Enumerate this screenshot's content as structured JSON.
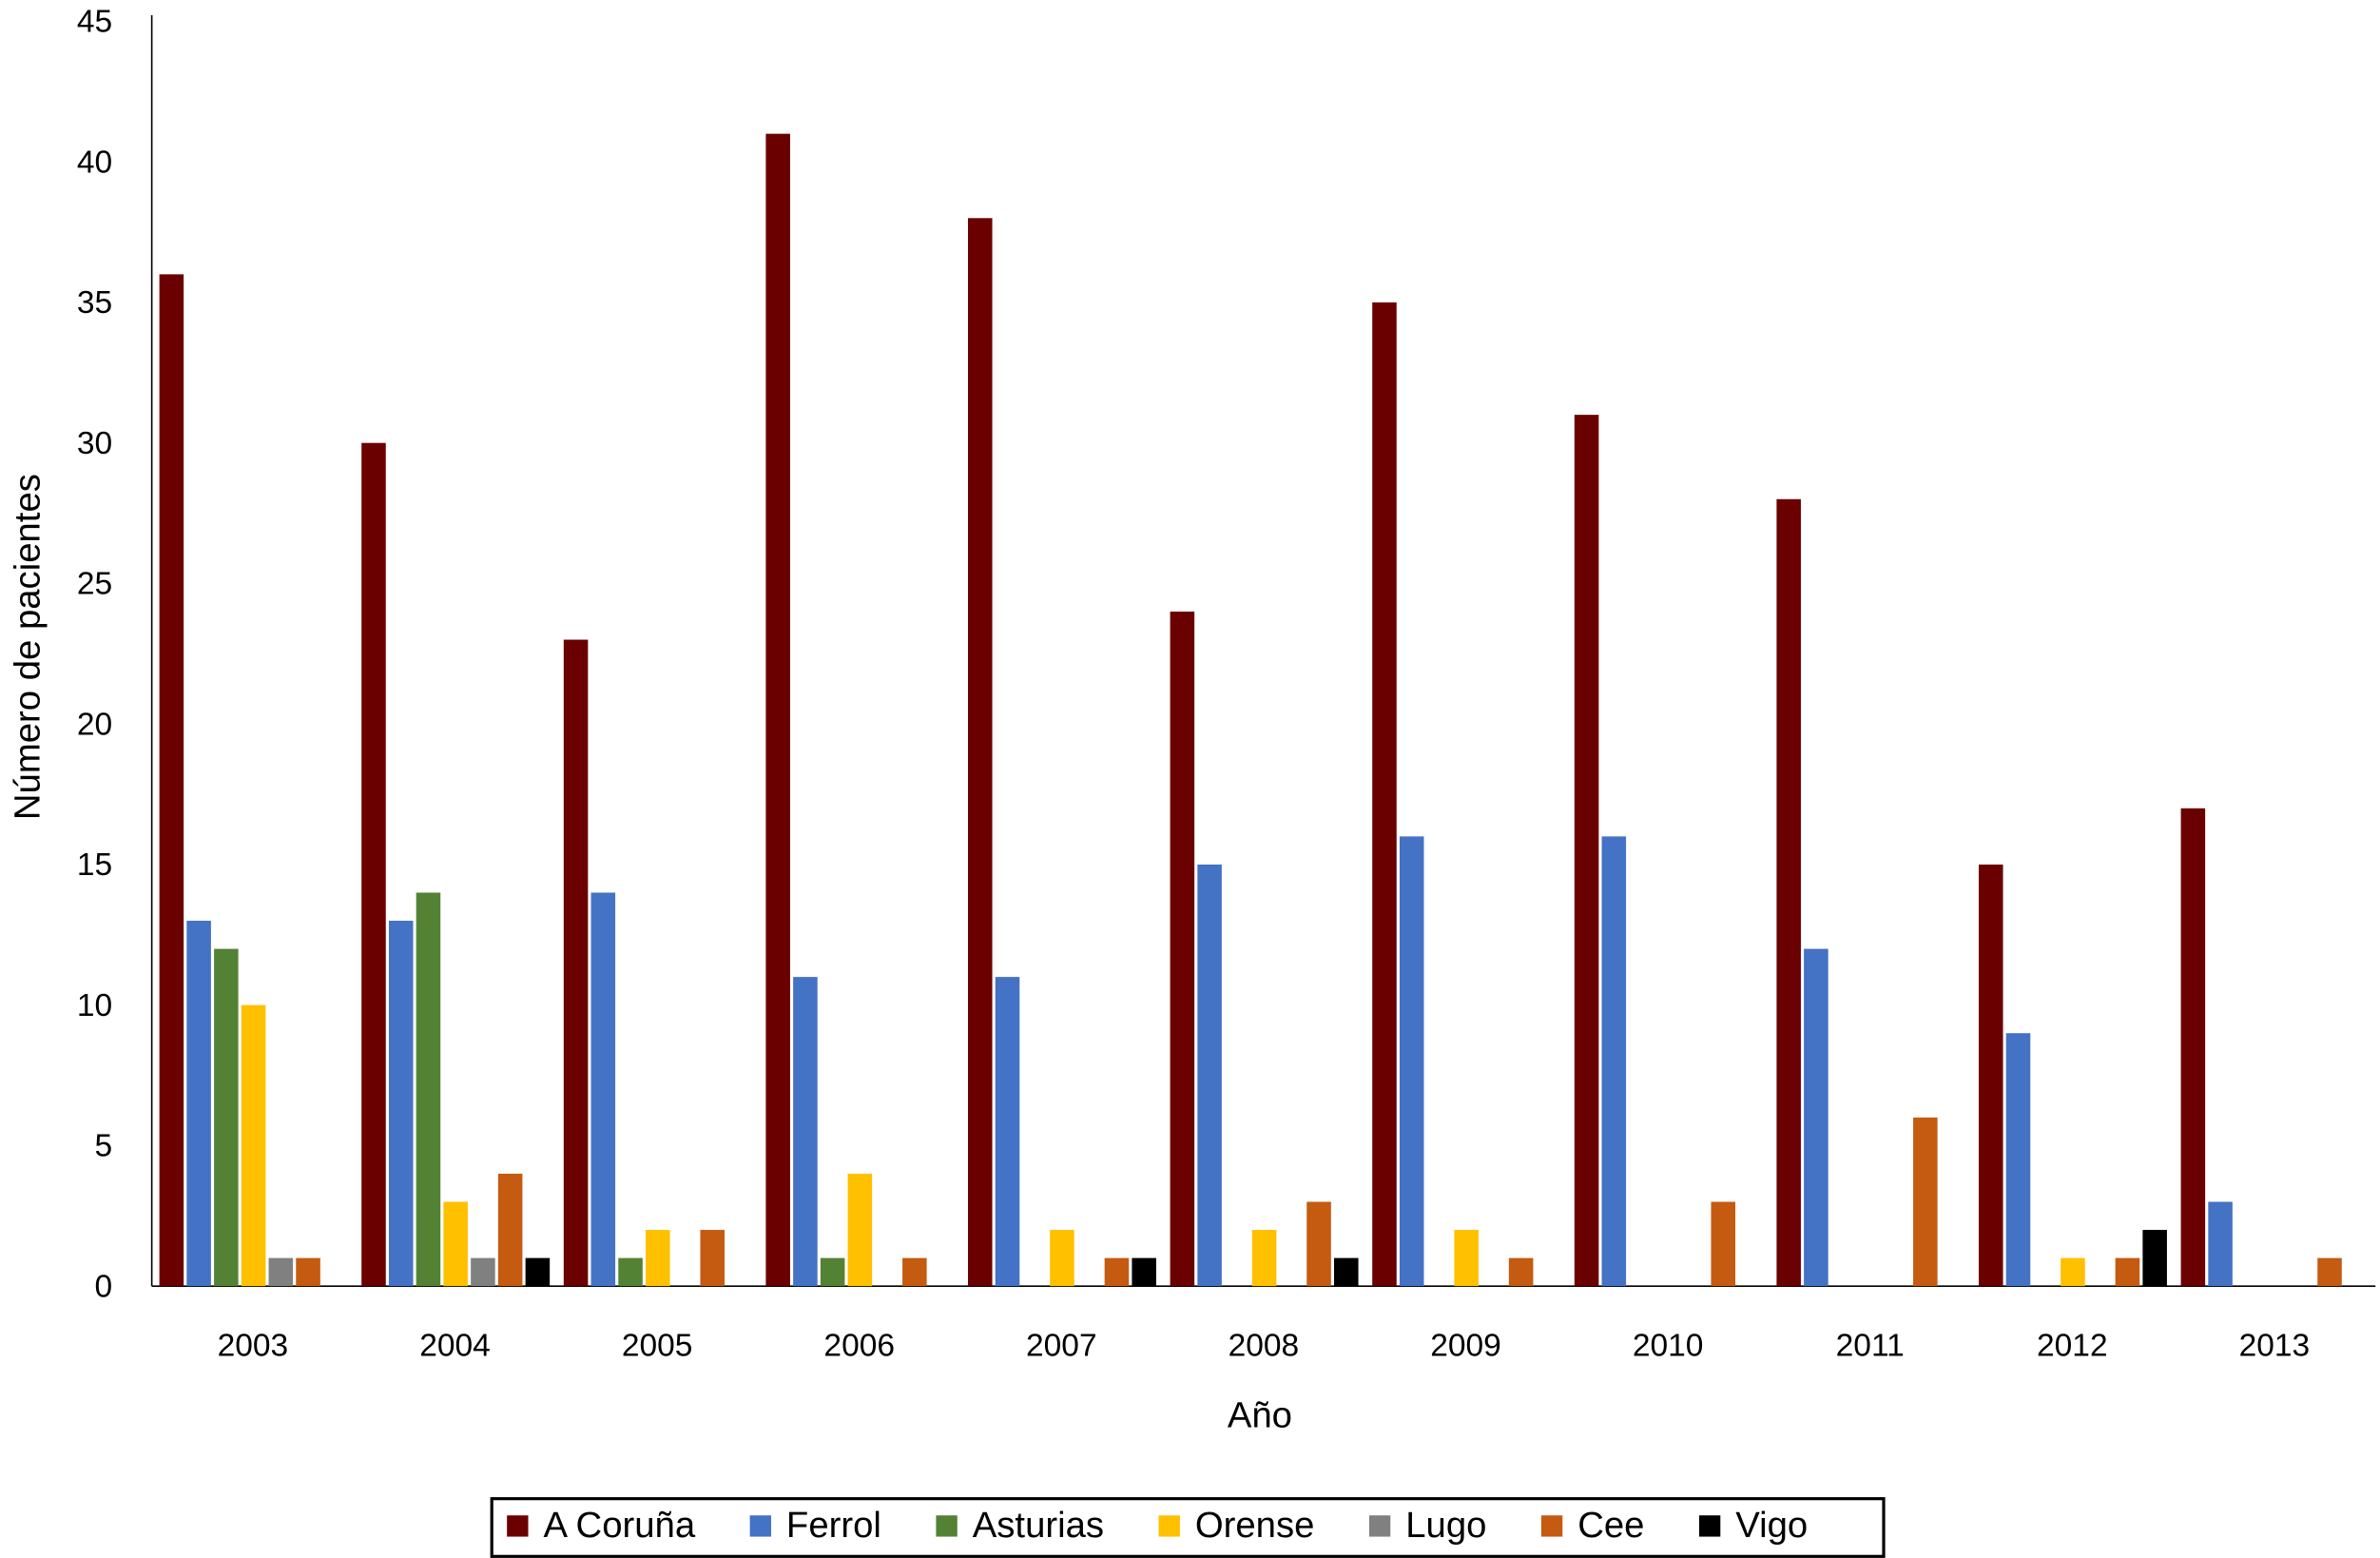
{
  "chart_data": {
    "type": "bar",
    "x_label": "Año",
    "y_label": "Número de pacientes",
    "categories": [
      "2003",
      "2004",
      "2005",
      "2006",
      "2007",
      "2008",
      "2009",
      "2010",
      "2011",
      "2012",
      "2013"
    ],
    "series": [
      {
        "name": "A Coruña",
        "color": "#6b0000",
        "values": [
          36,
          30,
          23,
          41,
          38,
          24,
          35,
          31,
          28,
          15,
          17
        ]
      },
      {
        "name": "Ferrol",
        "color": "#4472c4",
        "values": [
          13,
          13,
          14,
          11,
          11,
          15,
          16,
          16,
          12,
          9,
          3
        ]
      },
      {
        "name": "Asturias",
        "color": "#548235",
        "values": [
          12,
          14,
          1,
          1,
          0,
          0,
          0,
          0,
          0,
          0,
          0
        ]
      },
      {
        "name": "Orense",
        "color": "#ffc000",
        "values": [
          10,
          3,
          2,
          4,
          2,
          2,
          2,
          0,
          0,
          1,
          0
        ]
      },
      {
        "name": "Lugo",
        "color": "#808080",
        "values": [
          1,
          1,
          0,
          0,
          0,
          0,
          0,
          0,
          0,
          0,
          0
        ]
      },
      {
        "name": "Cee",
        "color": "#c55a11",
        "values": [
          1,
          4,
          2,
          1,
          1,
          3,
          1,
          3,
          6,
          1,
          1
        ]
      },
      {
        "name": "Vigo",
        "color": "#000000",
        "values": [
          0,
          1,
          0,
          0,
          1,
          1,
          0,
          0,
          0,
          2,
          0
        ]
      }
    ],
    "ylim": [
      0,
      45
    ],
    "yticks": [
      0,
      5,
      10,
      15,
      20,
      25,
      30,
      35,
      40,
      45
    ],
    "grid": false,
    "legend": "bottom"
  }
}
